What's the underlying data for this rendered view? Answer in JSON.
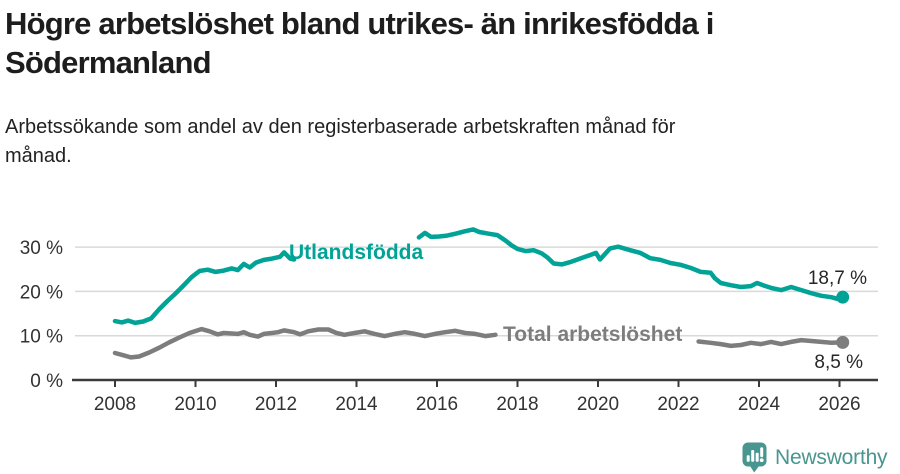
{
  "title": {
    "line1": "Högre arbetslöshet bland utrikes- än inrikesfödda i",
    "line2": "Södermanland"
  },
  "subtitle": {
    "line1": "Arbetssökande som andel av den registerbaserade arbetskraften månad för",
    "line2": "månad."
  },
  "branding": {
    "name": "Newsworthy",
    "color": "#48968f",
    "icon": "bar-chart-map-pin-icon"
  },
  "chart_data": {
    "type": "line",
    "title": "Högre arbetslöshet bland utrikes- än inrikesfödda i Södermanland",
    "xlabel": "",
    "ylabel": "Arbetssökande som andel av den registerbaserade arbetskraften (%)",
    "x_unit": "year (monthly data)",
    "xlim": [
      2006.9,
      2027
    ],
    "ylim": [
      0,
      36
    ],
    "grid": "horizontal",
    "legend_position": "inline-labels",
    "x_ticks": [
      2008,
      2010,
      2012,
      2014,
      2016,
      2018,
      2020,
      2022,
      2024,
      2026
    ],
    "y_ticks": [
      {
        "value": 0,
        "label": "0 %"
      },
      {
        "value": 10,
        "label": "10 %"
      },
      {
        "value": 20,
        "label": "20 %"
      },
      {
        "value": 30,
        "label": "30 %"
      }
    ],
    "y_gridlines": [
      10,
      20,
      30
    ],
    "axis_color": "#3a3a3a",
    "grid_color": "#d9d9d9",
    "series": [
      {
        "name": "Utlandsfödda",
        "color": "#00a396",
        "end_label": "18,7 %",
        "end_point": [
          2026.08,
          18.7
        ],
        "segments": [
          [
            [
              2008,
              13.3
            ],
            [
              2008.17,
              13.0
            ],
            [
              2008.33,
              13.4
            ],
            [
              2008.5,
              12.9
            ],
            [
              2008.7,
              13.2
            ],
            [
              2008.9,
              13.9
            ],
            [
              2009.1,
              16.0
            ],
            [
              2009.3,
              17.8
            ],
            [
              2009.5,
              19.5
            ],
            [
              2009.7,
              21.3
            ],
            [
              2009.9,
              23.2
            ],
            [
              2010.1,
              24.6
            ],
            [
              2010.3,
              24.9
            ],
            [
              2010.5,
              24.4
            ],
            [
              2010.7,
              24.7
            ],
            [
              2010.9,
              25.2
            ],
            [
              2011.05,
              24.8
            ],
            [
              2011.2,
              26.2
            ],
            [
              2011.35,
              25.4
            ],
            [
              2011.5,
              26.5
            ],
            [
              2011.7,
              27.1
            ],
            [
              2011.9,
              27.4
            ],
            [
              2012.1,
              27.8
            ],
            [
              2012.2,
              28.8
            ],
            [
              2012.35,
              27.4
            ],
            [
              2012.45,
              27.2
            ]
          ],
          [
            [
              2015.55,
              32.2
            ],
            [
              2015.7,
              33.2
            ],
            [
              2015.85,
              32.3
            ],
            [
              2016.05,
              32.4
            ],
            [
              2016.25,
              32.6
            ],
            [
              2016.45,
              33.0
            ],
            [
              2016.7,
              33.6
            ],
            [
              2016.9,
              34.0
            ],
            [
              2017.05,
              33.4
            ],
            [
              2017.3,
              33.0
            ],
            [
              2017.5,
              32.7
            ],
            [
              2017.7,
              31.5
            ],
            [
              2017.85,
              30.4
            ],
            [
              2018.0,
              29.6
            ],
            [
              2018.2,
              29.1
            ],
            [
              2018.4,
              29.3
            ],
            [
              2018.6,
              28.6
            ],
            [
              2018.75,
              27.6
            ],
            [
              2018.9,
              26.3
            ],
            [
              2019.1,
              26.1
            ],
            [
              2019.3,
              26.6
            ],
            [
              2019.55,
              27.4
            ],
            [
              2019.8,
              28.2
            ],
            [
              2019.95,
              28.7
            ],
            [
              2020.05,
              27.2
            ],
            [
              2020.3,
              29.7
            ],
            [
              2020.5,
              30.1
            ],
            [
              2020.8,
              29.3
            ],
            [
              2021.05,
              28.7
            ],
            [
              2021.3,
              27.5
            ],
            [
              2021.55,
              27.1
            ],
            [
              2021.8,
              26.4
            ],
            [
              2022.05,
              26.0
            ],
            [
              2022.3,
              25.3
            ],
            [
              2022.55,
              24.4
            ],
            [
              2022.8,
              24.2
            ],
            [
              2022.9,
              23.0
            ],
            [
              2023.05,
              21.9
            ],
            [
              2023.3,
              21.4
            ],
            [
              2023.55,
              21.0
            ],
            [
              2023.8,
              21.2
            ],
            [
              2023.95,
              21.9
            ],
            [
              2024.1,
              21.4
            ],
            [
              2024.3,
              20.8
            ],
            [
              2024.55,
              20.3
            ],
            [
              2024.8,
              21.0
            ],
            [
              2025.05,
              20.3
            ],
            [
              2025.3,
              19.6
            ],
            [
              2025.55,
              19.0
            ],
            [
              2025.8,
              18.7
            ],
            [
              2025.95,
              18.3
            ],
            [
              2026.08,
              18.7
            ]
          ]
        ]
      },
      {
        "name": "Total arbetslöshet",
        "color": "#7d7d7d",
        "end_label": "8,5 %",
        "end_point": [
          2026.08,
          8.5
        ],
        "segments": [
          [
            [
              2008,
              6.1
            ],
            [
              2008.2,
              5.6
            ],
            [
              2008.4,
              5.1
            ],
            [
              2008.6,
              5.3
            ],
            [
              2008.85,
              6.2
            ],
            [
              2009.1,
              7.3
            ],
            [
              2009.35,
              8.5
            ],
            [
              2009.6,
              9.6
            ],
            [
              2009.85,
              10.6
            ],
            [
              2010.05,
              11.2
            ],
            [
              2010.15,
              11.5
            ],
            [
              2010.35,
              11.0
            ],
            [
              2010.55,
              10.3
            ],
            [
              2010.7,
              10.6
            ],
            [
              2010.9,
              10.5
            ],
            [
              2011.05,
              10.4
            ],
            [
              2011.2,
              10.8
            ],
            [
              2011.35,
              10.2
            ],
            [
              2011.55,
              9.8
            ],
            [
              2011.7,
              10.4
            ],
            [
              2011.9,
              10.6
            ],
            [
              2012.05,
              10.8
            ],
            [
              2012.2,
              11.2
            ],
            [
              2012.45,
              10.8
            ],
            [
              2012.6,
              10.3
            ],
            [
              2012.8,
              11.0
            ],
            [
              2013.05,
              11.4
            ],
            [
              2013.3,
              11.4
            ],
            [
              2013.5,
              10.6
            ],
            [
              2013.7,
              10.2
            ],
            [
              2013.95,
              10.6
            ],
            [
              2014.2,
              11.0
            ],
            [
              2014.45,
              10.4
            ],
            [
              2014.7,
              9.9
            ],
            [
              2014.95,
              10.4
            ],
            [
              2015.2,
              10.8
            ],
            [
              2015.45,
              10.4
            ],
            [
              2015.7,
              9.9
            ],
            [
              2015.95,
              10.4
            ],
            [
              2016.2,
              10.8
            ],
            [
              2016.45,
              11.1
            ],
            [
              2016.7,
              10.6
            ],
            [
              2016.95,
              10.4
            ],
            [
              2017.2,
              9.9
            ],
            [
              2017.45,
              10.2
            ]
          ],
          [
            [
              2022.5,
              8.7
            ],
            [
              2022.8,
              8.4
            ],
            [
              2023.05,
              8.1
            ],
            [
              2023.3,
              7.7
            ],
            [
              2023.55,
              7.9
            ],
            [
              2023.8,
              8.4
            ],
            [
              2024.05,
              8.1
            ],
            [
              2024.3,
              8.6
            ],
            [
              2024.55,
              8.1
            ],
            [
              2024.8,
              8.6
            ],
            [
              2025.05,
              9.0
            ],
            [
              2025.3,
              8.8
            ],
            [
              2025.55,
              8.6
            ],
            [
              2025.8,
              8.4
            ],
            [
              2026.08,
              8.5
            ]
          ]
        ]
      }
    ]
  }
}
